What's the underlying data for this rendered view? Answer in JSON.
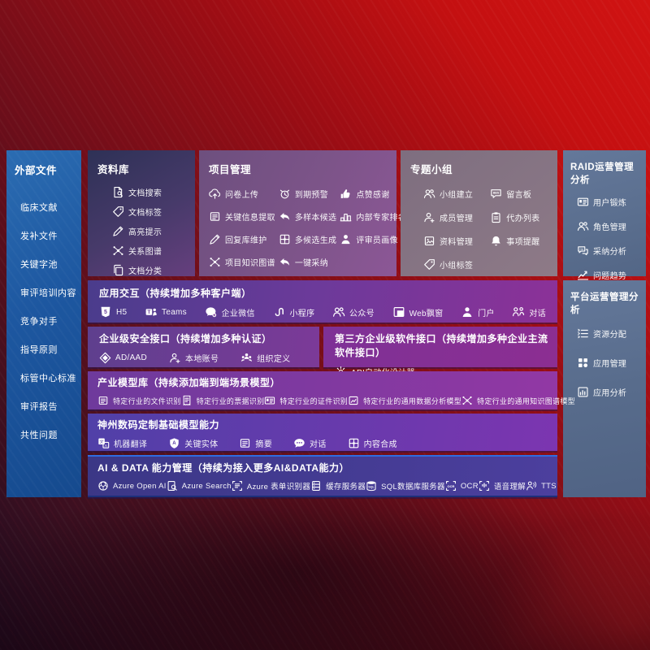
{
  "sidebar": {
    "title": "外部文件",
    "items": [
      {
        "label": "临床文献"
      },
      {
        "label": "发补文件"
      },
      {
        "label": "关键字池"
      },
      {
        "label": "审评培训内容"
      },
      {
        "label": "竞争对手"
      },
      {
        "label": "指导原则"
      },
      {
        "label": "标管中心标准"
      },
      {
        "label": "审评报告"
      },
      {
        "label": "共性问题"
      }
    ]
  },
  "library": {
    "title": "资料库",
    "items": [
      {
        "label": "文档搜索",
        "icon": "document-search-icon"
      },
      {
        "label": "文档标签",
        "icon": "tag-icon"
      },
      {
        "label": "高亮提示",
        "icon": "highlight-pencil-icon"
      },
      {
        "label": "关系图谱",
        "icon": "relation-graph-icon"
      },
      {
        "label": "文档分类",
        "icon": "document-copy-icon"
      }
    ]
  },
  "project": {
    "title": "项目管理",
    "items": [
      {
        "label": "问卷上传",
        "icon": "cloud-upload-icon"
      },
      {
        "label": "到期预警",
        "icon": "alarm-icon"
      },
      {
        "label": "点赞感谢",
        "icon": "thumbs-up-icon"
      },
      {
        "label": "关键信息提取",
        "icon": "document-extract-icon"
      },
      {
        "label": "多样本候选",
        "icon": "reply-arrow-icon"
      },
      {
        "label": "内部专家排名",
        "icon": "podium-icon"
      },
      {
        "label": "回复库维护",
        "icon": "highlight-pencil-icon"
      },
      {
        "label": "多候选生成",
        "icon": "puzzle-icon"
      },
      {
        "label": "评审员画像",
        "icon": "person-icon"
      },
      {
        "label": "项目知识图谱",
        "icon": "relation-graph-icon"
      },
      {
        "label": "一键采纳",
        "icon": "reply-arrow-icon"
      }
    ]
  },
  "topic": {
    "title": "专题小组",
    "items": [
      {
        "label": "小组建立",
        "icon": "people-icon"
      },
      {
        "label": "留言板",
        "icon": "bbs-board-icon"
      },
      {
        "label": "成员管理",
        "icon": "person-add-icon"
      },
      {
        "label": "代办列表",
        "icon": "clipboard-icon"
      },
      {
        "label": "资料管理",
        "icon": "album-icon"
      },
      {
        "label": "事项提醒",
        "icon": "bell-icon"
      },
      {
        "label": "小组标签",
        "icon": "tag-icon"
      }
    ]
  },
  "raid": {
    "title": "RAID运营管理分析",
    "items": [
      {
        "label": "用户锻炼",
        "icon": "id-card-icon"
      },
      {
        "label": "角色管理",
        "icon": "people-icon"
      },
      {
        "label": "采纳分析",
        "icon": "qa-bubbles-icon"
      },
      {
        "label": "问题趋势",
        "icon": "trend-chart-icon"
      }
    ]
  },
  "platform": {
    "title": "平台运营管理分析",
    "items": [
      {
        "label": "资源分配",
        "icon": "list-sliders-icon"
      },
      {
        "label": "应用管理",
        "icon": "app-grid-icon"
      },
      {
        "label": "应用分析",
        "icon": "app-chart-icon"
      }
    ]
  },
  "interaction": {
    "title": "应用交互（持续增加多种客户端）",
    "items": [
      {
        "label": "H5",
        "icon": "h5-icon"
      },
      {
        "label": "Teams",
        "icon": "teams-icon"
      },
      {
        "label": "企业微信",
        "icon": "wechat-work-icon"
      },
      {
        "label": "小程序",
        "icon": "miniprogram-icon"
      },
      {
        "label": "公众号",
        "icon": "official-account-icon"
      },
      {
        "label": "Web飘窗",
        "icon": "web-window-icon"
      },
      {
        "label": "门户",
        "icon": "portal-person-icon"
      },
      {
        "label": "对话",
        "icon": "conversation-icon"
      }
    ]
  },
  "security": {
    "title": "企业级安全接口（持续增加多种认证）",
    "items": [
      {
        "label": "AD/AAD",
        "icon": "ad-diamond-icon"
      },
      {
        "label": "本地账号",
        "icon": "person-gear-icon"
      },
      {
        "label": "组织定义",
        "icon": "org-people-icon"
      }
    ]
  },
  "thirdparty": {
    "title": "第三方企业级软件接口（持续增加多种企业主流软件接口）",
    "items": [
      {
        "label": "API自动化设计器",
        "icon": "api-gear-icon"
      }
    ]
  },
  "industry": {
    "title": "产业模型库（持续添加端到端场景模型）",
    "items": [
      {
        "label": "特定行业的文件识别",
        "icon": "document-file-icon"
      },
      {
        "label": "特定行业的票据识别",
        "icon": "receipt-icon"
      },
      {
        "label": "特定行业的证件识别",
        "icon": "id-card-icon"
      },
      {
        "label": "特定行业的通用数据分析模型",
        "icon": "data-model-icon"
      },
      {
        "label": "特定行业的通用知识图谱模型",
        "icon": "relation-graph-icon"
      }
    ]
  },
  "basemodel": {
    "title": "神州数码定制基础模型能力",
    "items": [
      {
        "label": "机器翻译",
        "icon": "translate-icon"
      },
      {
        "label": "关键实体",
        "icon": "shield-a-icon"
      },
      {
        "label": "摘要",
        "icon": "summary-doc-icon"
      },
      {
        "label": "对话",
        "icon": "chat-dots-icon"
      },
      {
        "label": "内容合成",
        "icon": "puzzle-icon"
      }
    ]
  },
  "aidata": {
    "title": "AI & DATA 能力管理（持续为接入更多AI&DATA能力）",
    "items": [
      {
        "label": "Azure Open AI",
        "icon": "openai-icon"
      },
      {
        "label": "Azure Search",
        "icon": "azure-search-icon"
      },
      {
        "label": "Azure 表单识别器",
        "icon": "form-recognizer-icon"
      },
      {
        "label": "缓存服务器",
        "icon": "cache-server-icon"
      },
      {
        "label": "SQL数据库服务器",
        "icon": "sql-database-icon"
      },
      {
        "label": "OCR",
        "icon": "ocr-frame-icon"
      },
      {
        "label": "语音理解",
        "icon": "speech-mic-icon"
      },
      {
        "label": "TTS",
        "icon": "tts-icon"
      }
    ]
  },
  "colors": {
    "background_red": "#9d0d14",
    "sidebar_blue": "#1d57a0",
    "slate_panel": "#5a6e8e",
    "accent_blue_divider": "#2f6be0",
    "purple_row": "#6c3a9a"
  }
}
